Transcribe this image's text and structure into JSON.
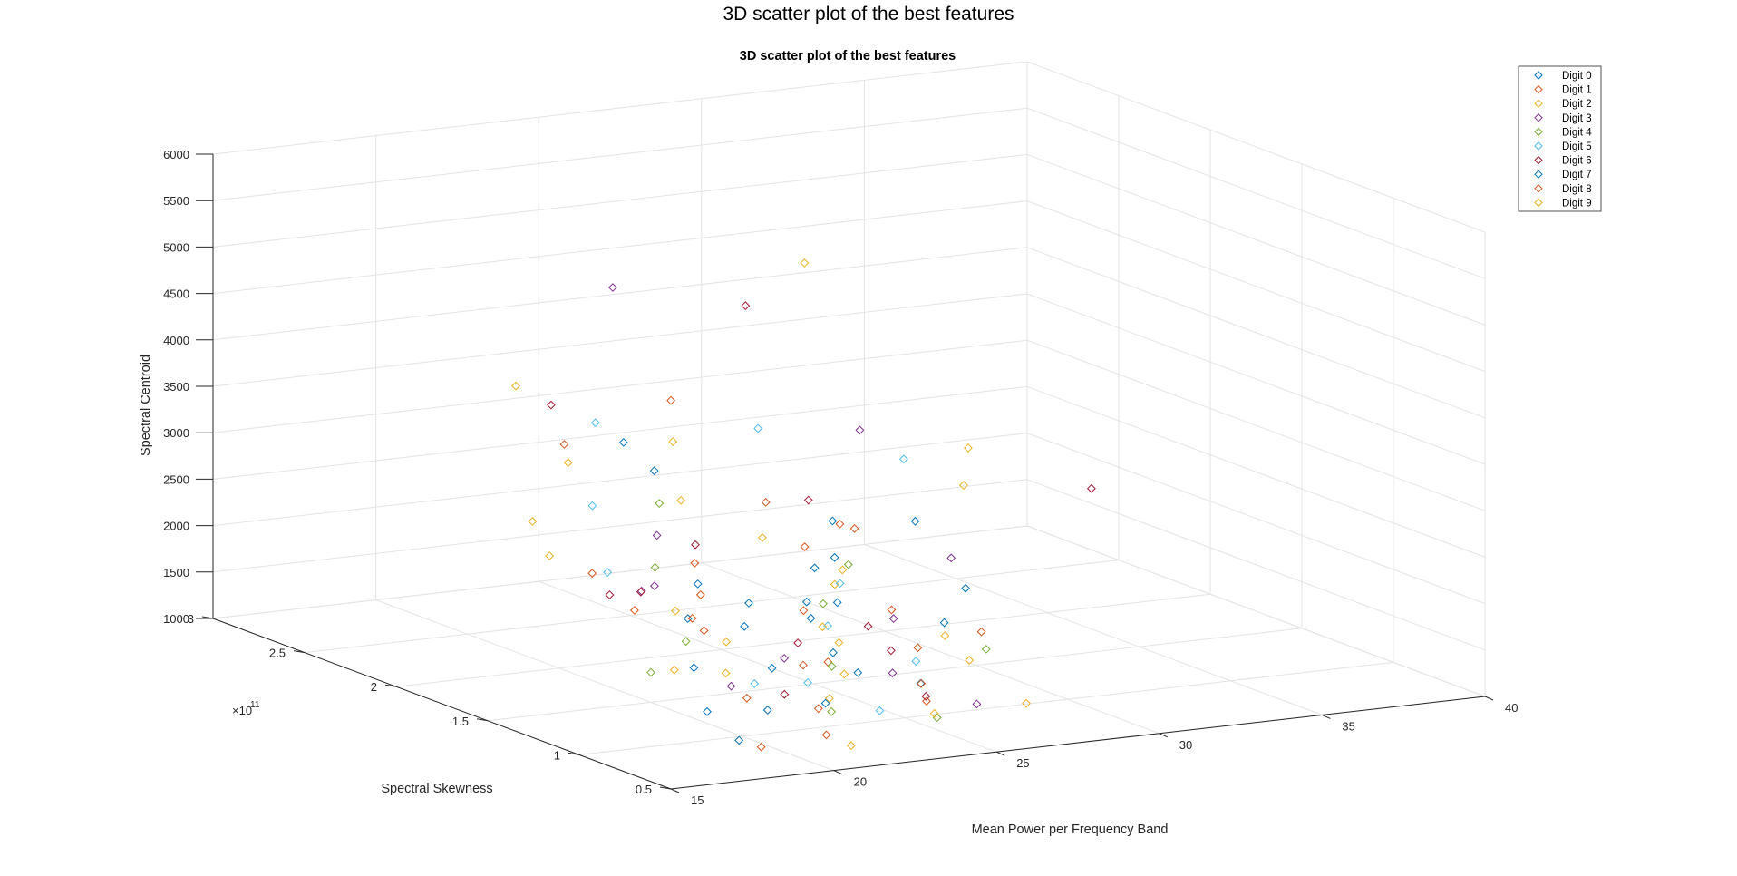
{
  "figure": {
    "title": "3D scatter plot of the best features"
  },
  "chart_data": {
    "type": "scatter",
    "projection": "3d",
    "title": "3D scatter plot of the best features",
    "xlabel": "Mean Power per Frequency Band",
    "ylabel": "Spectral Skewness",
    "zlabel": "Spectral Centroid",
    "y_exponent_label": "×10",
    "y_exponent": "11",
    "xlim": [
      15,
      40
    ],
    "ylim": [
      0.5,
      3
    ],
    "zlim": [
      1000,
      6000
    ],
    "xticks": [
      "15",
      "20",
      "25",
      "30",
      "35",
      "40"
    ],
    "yticks": [
      "0.5",
      "1",
      "1.5",
      "2",
      "2.5",
      "3"
    ],
    "zticks": [
      "1000",
      "1500",
      "2000",
      "2500",
      "3000",
      "3500",
      "4000",
      "4500",
      "5000",
      "5500",
      "6000"
    ],
    "grid": true,
    "legend_position": "top-right",
    "marker": "diamond",
    "series": [
      {
        "name": "Digit 0",
        "color": "#0072BD",
        "points": [
          [
            21.2,
            1.05,
            1650
          ],
          [
            23.8,
            1.3,
            1900
          ],
          [
            20.5,
            0.95,
            1300
          ],
          [
            25.6,
            1.6,
            2150
          ],
          [
            19.2,
            1.1,
            2600
          ],
          [
            17.8,
            0.8,
            1500
          ],
          [
            22.6,
            1.45,
            1750
          ],
          [
            27.9,
            1.9,
            1950
          ],
          [
            31.5,
            2.1,
            2050
          ],
          [
            24.4,
            1.15,
            1400
          ],
          [
            18.5,
            0.75,
            1200
          ],
          [
            26.2,
            1.75,
            1650
          ],
          [
            29.3,
            1.55,
            1450
          ],
          [
            21.8,
            1.8,
            3200
          ]
        ]
      },
      {
        "name": "Digit 1",
        "color": "#D95319",
        "points": [
          [
            23.2,
            1.1,
            1600
          ],
          [
            20.8,
            1.35,
            1850
          ],
          [
            25.1,
            0.9,
            1250
          ],
          [
            18.9,
            0.7,
            1150
          ],
          [
            27.5,
            1.8,
            2400
          ],
          [
            22.1,
            1.6,
            2000
          ],
          [
            16.8,
            1.25,
            2700
          ],
          [
            24.7,
            1.5,
            1800
          ],
          [
            30.2,
            2.2,
            1950
          ],
          [
            19.6,
            1.9,
            3500
          ],
          [
            26.8,
            1.25,
            1500
          ],
          [
            21.5,
            0.85,
            1350
          ],
          [
            28.6,
            2.4,
            2150
          ]
        ]
      },
      {
        "name": "Digit 2",
        "color": "#EDB120",
        "points": [
          [
            24.1,
            1.2,
            1700
          ],
          [
            22.4,
            0.95,
            1350
          ],
          [
            20.2,
            1.4,
            2050
          ],
          [
            26.5,
            1.65,
            1900
          ],
          [
            18.2,
            1.05,
            1750
          ],
          [
            23.5,
            2.0,
            3300
          ],
          [
            28.2,
            1.35,
            1500
          ],
          [
            21.1,
            0.6,
            1150
          ],
          [
            17.5,
            1.7,
            2900
          ],
          [
            25.4,
            1.85,
            2300
          ],
          [
            35.8,
            2.6,
            1900
          ],
          [
            27.6,
            0.8,
            1200
          ],
          [
            19.8,
            2.2,
            3900
          ]
        ]
      },
      {
        "name": "Digit 3",
        "color": "#7E2F8E",
        "points": [
          [
            22.7,
            1.25,
            1550
          ],
          [
            24.9,
            1.05,
            1450
          ],
          [
            20.4,
            1.55,
            2200
          ],
          [
            26.9,
            1.4,
            1700
          ],
          [
            19.1,
            0.9,
            1650
          ],
          [
            29.8,
            2.1,
            3100
          ],
          [
            23.9,
            2.4,
            4650
          ],
          [
            18.6,
            1.3,
            2400
          ],
          [
            25.8,
            0.75,
            1300
          ],
          [
            21.6,
            1.75,
            2550
          ],
          [
            31.2,
            1.85,
            1850
          ]
        ]
      },
      {
        "name": "Digit 4",
        "color": "#77AC30",
        "points": [
          [
            23.6,
            1.15,
            1500
          ],
          [
            21.9,
            0.85,
            1300
          ],
          [
            25.3,
            1.5,
            1850
          ],
          [
            19.4,
            1.2,
            1900
          ],
          [
            27.2,
            1.7,
            2050
          ],
          [
            22.8,
            1.95,
            2700
          ],
          [
            17.2,
            1.0,
            1800
          ],
          [
            24.3,
            0.7,
            1250
          ],
          [
            28.9,
            1.25,
            1400
          ],
          [
            20.7,
            1.6,
            2350
          ]
        ]
      },
      {
        "name": "Digit 5",
        "color": "#4DBEEE",
        "points": [
          [
            22.3,
            1.05,
            1450
          ],
          [
            24.6,
            1.35,
            1750
          ],
          [
            20.1,
            0.95,
            1600
          ],
          [
            26.1,
            1.55,
            2000
          ],
          [
            18.4,
            1.45,
            2500
          ],
          [
            21.4,
            2.05,
            3550
          ],
          [
            27.8,
            2.3,
            3050
          ],
          [
            23.1,
            0.8,
            1300
          ],
          [
            19.9,
            1.8,
            2900
          ],
          [
            33.4,
            2.5,
            2350
          ],
          [
            25.9,
            1.1,
            1500
          ]
        ]
      },
      {
        "name": "Digit 6",
        "color": "#A2142F",
        "points": [
          [
            23.4,
            1.3,
            1650
          ],
          [
            21.3,
            1.0,
            1400
          ],
          [
            25.7,
            1.2,
            1550
          ],
          [
            19.7,
            1.5,
            2200
          ],
          [
            27.1,
            1.9,
            2600
          ],
          [
            22.5,
            1.7,
            2450
          ],
          [
            29.1,
            2.6,
            4100
          ],
          [
            17.9,
            1.35,
            2350
          ],
          [
            24.8,
            0.85,
            1350
          ],
          [
            38.6,
            2.4,
            1900
          ],
          [
            20.6,
            2.15,
            3700
          ],
          [
            26.4,
            1.45,
            1600
          ]
        ]
      },
      {
        "name": "Digit 7",
        "color": "#0072BD",
        "points": [
          [
            24.2,
            1.25,
            1550
          ],
          [
            22.0,
            0.9,
            1350
          ],
          [
            26.3,
            1.6,
            1750
          ],
          [
            20.3,
            1.35,
            2000
          ],
          [
            28.4,
            2.0,
            2250
          ],
          [
            21.7,
            1.95,
            3400
          ],
          [
            18.8,
            1.05,
            1750
          ],
          [
            25.2,
            0.95,
            1400
          ],
          [
            30.8,
            1.7,
            1650
          ],
          [
            23.3,
            1.55,
            1900
          ]
        ]
      },
      {
        "name": "Digit 8",
        "color": "#D95319",
        "points": [
          [
            23.0,
            1.2,
            1500
          ],
          [
            25.5,
            1.0,
            1350
          ],
          [
            21.0,
            1.45,
            1900
          ],
          [
            27.4,
            1.5,
            1700
          ],
          [
            19.3,
            0.85,
            1550
          ],
          [
            24.0,
            2.1,
            3650
          ],
          [
            22.2,
            1.65,
            2300
          ],
          [
            26.7,
            1.85,
            2150
          ],
          [
            18.1,
            1.25,
            2250
          ],
          [
            29.6,
            1.4,
            1450
          ],
          [
            20.9,
            0.7,
            1200
          ]
        ]
      },
      {
        "name": "Digit 9",
        "color": "#EDB120",
        "points": [
          [
            23.7,
            1.1,
            1450
          ],
          [
            21.2,
            1.3,
            1750
          ],
          [
            25.0,
            1.45,
            1650
          ],
          [
            19.5,
            1.0,
            1700
          ],
          [
            27.3,
            1.75,
            1950
          ],
          [
            22.9,
            1.85,
            2800
          ],
          [
            16.9,
            1.5,
            2700
          ],
          [
            24.5,
            0.75,
            1250
          ],
          [
            36.5,
            2.7,
            2200
          ],
          [
            20.0,
            1.95,
            3250
          ],
          [
            28.1,
            1.2,
            1350
          ],
          [
            32.6,
            2.9,
            4200
          ]
        ]
      }
    ]
  }
}
